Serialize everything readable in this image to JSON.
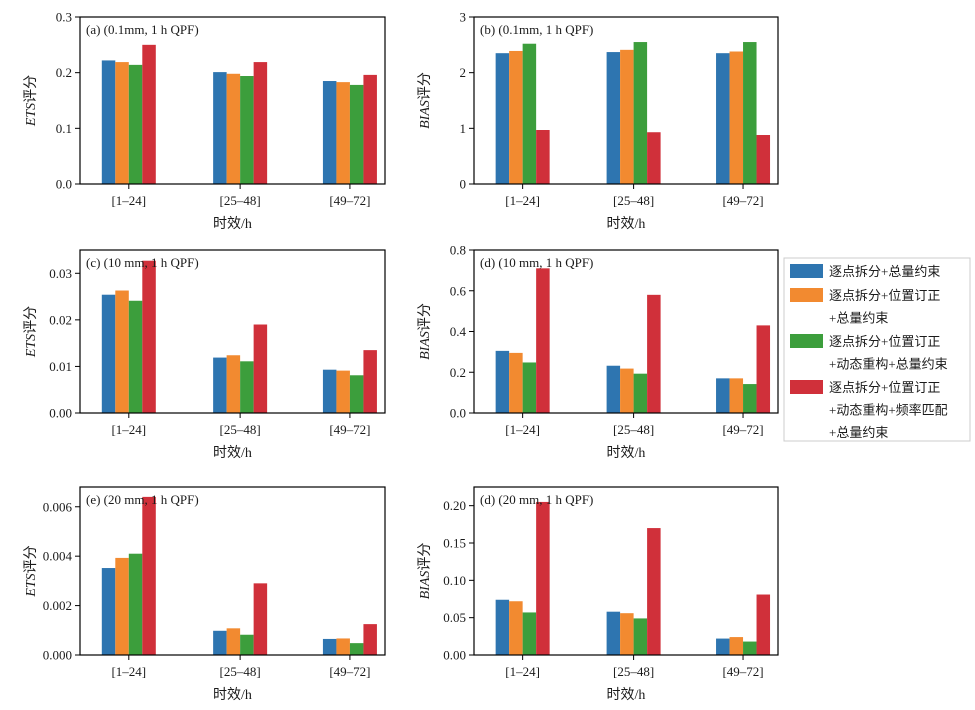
{
  "series_names": [
    "逐点拆分+总量约束",
    "逐点拆分+位置订正+总量约束",
    "逐点拆分+位置订正+动态重构+总量约束",
    "逐点拆分+位置订正+动态重构+频率匹配+总量约束"
  ],
  "legend": {
    "entries": [
      {
        "lines": [
          "逐点拆分+总量约束"
        ],
        "color": "#2e75b0"
      },
      {
        "lines": [
          "逐点拆分+位置订正",
          "+总量约束"
        ],
        "color": "#f28a30"
      },
      {
        "lines": [
          "逐点拆分+位置订正",
          "+动态重构+总量约束"
        ],
        "color": "#3c9e3c"
      },
      {
        "lines": [
          "逐点拆分+位置订正",
          "+动态重构+频率匹配",
          "+总量约束"
        ],
        "color": "#d0303a"
      }
    ]
  },
  "chart_data": [
    {
      "id": "a",
      "type": "bar",
      "title": "(a) (0.1mm, 1 h QPF)",
      "ylabel_italic": "ETS",
      "ylabel_suffix": "评分",
      "xlabel": "时效/h",
      "categories": [
        "[1–24]",
        "[25–48]",
        "[49–72]"
      ],
      "ylim": [
        0,
        0.3
      ],
      "yticks": [
        {
          "v": 0.0,
          "label": "0.0"
        },
        {
          "v": 0.1,
          "label": "0.1"
        },
        {
          "v": 0.2,
          "label": "0.2"
        },
        {
          "v": 0.3,
          "label": "0.3"
        }
      ],
      "series": [
        {
          "color": "#2e75b0",
          "values": [
            0.222,
            0.201,
            0.185
          ]
        },
        {
          "color": "#f28a30",
          "values": [
            0.219,
            0.198,
            0.183
          ]
        },
        {
          "color": "#3c9e3c",
          "values": [
            0.214,
            0.194,
            0.178
          ]
        },
        {
          "color": "#d0303a",
          "values": [
            0.25,
            0.219,
            0.196
          ]
        }
      ]
    },
    {
      "id": "b",
      "type": "bar",
      "title": "(b) (0.1mm, 1 h QPF)",
      "ylabel_italic": "BIAS",
      "ylabel_suffix": "评分",
      "xlabel": "时效/h",
      "categories": [
        "[1–24]",
        "[25–48]",
        "[49–72]"
      ],
      "ylim": [
        0,
        3
      ],
      "yticks": [
        {
          "v": 0,
          "label": "0"
        },
        {
          "v": 1,
          "label": "1"
        },
        {
          "v": 2,
          "label": "2"
        },
        {
          "v": 3,
          "label": "3"
        }
      ],
      "series": [
        {
          "color": "#2e75b0",
          "values": [
            2.35,
            2.37,
            2.35
          ]
        },
        {
          "color": "#f28a30",
          "values": [
            2.39,
            2.41,
            2.38
          ]
        },
        {
          "color": "#3c9e3c",
          "values": [
            2.52,
            2.55,
            2.55
          ]
        },
        {
          "color": "#d0303a",
          "values": [
            0.97,
            0.93,
            0.88
          ]
        }
      ]
    },
    {
      "id": "c",
      "type": "bar",
      "title": "(c) (10 mm, 1 h QPF)",
      "ylabel_italic": "ETS",
      "ylabel_suffix": "评分",
      "xlabel": "时效/h",
      "categories": [
        "[1–24]",
        "[25–48]",
        "[49–72]"
      ],
      "ylim": [
        0,
        0.035
      ],
      "yticks": [
        {
          "v": 0.0,
          "label": "0.00"
        },
        {
          "v": 0.01,
          "label": "0.01"
        },
        {
          "v": 0.02,
          "label": "0.02"
        },
        {
          "v": 0.03,
          "label": "0.03"
        }
      ],
      "series": [
        {
          "color": "#2e75b0",
          "values": [
            0.0254,
            0.0119,
            0.0093
          ]
        },
        {
          "color": "#f28a30",
          "values": [
            0.0263,
            0.0124,
            0.0091
          ]
        },
        {
          "color": "#3c9e3c",
          "values": [
            0.0241,
            0.0111,
            0.0081
          ]
        },
        {
          "color": "#d0303a",
          "values": [
            0.0327,
            0.019,
            0.0135
          ]
        }
      ]
    },
    {
      "id": "d1",
      "type": "bar",
      "title": "(d) (10 mm, 1 h QPF)",
      "ylabel_italic": "BIAS",
      "ylabel_suffix": "评分",
      "xlabel": "时效/h",
      "categories": [
        "[1–24]",
        "[25–48]",
        "[49–72]"
      ],
      "ylim": [
        0,
        0.8
      ],
      "yticks": [
        {
          "v": 0.0,
          "label": "0.0"
        },
        {
          "v": 0.2,
          "label": "0.2"
        },
        {
          "v": 0.4,
          "label": "0.4"
        },
        {
          "v": 0.6,
          "label": "0.6"
        },
        {
          "v": 0.8,
          "label": "0.8"
        }
      ],
      "series": [
        {
          "color": "#2e75b0",
          "values": [
            0.305,
            0.232,
            0.17
          ]
        },
        {
          "color": "#f28a30",
          "values": [
            0.295,
            0.218,
            0.17
          ]
        },
        {
          "color": "#3c9e3c",
          "values": [
            0.248,
            0.193,
            0.142
          ]
        },
        {
          "color": "#d0303a",
          "values": [
            0.71,
            0.58,
            0.43
          ]
        }
      ]
    },
    {
      "id": "e",
      "type": "bar",
      "title": "(e) (20 mm, 1 h QPF)",
      "ylabel_italic": "ETS",
      "ylabel_suffix": "评分",
      "xlabel": "时效/h",
      "categories": [
        "[1–24]",
        "[25–48]",
        "[49–72]"
      ],
      "ylim": [
        0,
        0.0068
      ],
      "yticks": [
        {
          "v": 0.0,
          "label": "0.000"
        },
        {
          "v": 0.002,
          "label": "0.002"
        },
        {
          "v": 0.004,
          "label": "0.004"
        },
        {
          "v": 0.006,
          "label": "0.006"
        }
      ],
      "series": [
        {
          "color": "#2e75b0",
          "values": [
            0.00352,
            0.00098,
            0.00065
          ]
        },
        {
          "color": "#f28a30",
          "values": [
            0.00393,
            0.00108,
            0.00067
          ]
        },
        {
          "color": "#3c9e3c",
          "values": [
            0.0041,
            0.00082,
            0.00048
          ]
        },
        {
          "color": "#d0303a",
          "values": [
            0.0064,
            0.0029,
            0.00125
          ]
        }
      ]
    },
    {
      "id": "d2",
      "type": "bar",
      "title": "(d) (20 mm, 1 h QPF)",
      "ylabel_italic": "BIAS",
      "ylabel_suffix": "评分",
      "xlabel": "时效/h",
      "categories": [
        "[1–24]",
        "[25–48]",
        "[49–72]"
      ],
      "ylim": [
        0,
        0.225
      ],
      "yticks": [
        {
          "v": 0.0,
          "label": "0.00"
        },
        {
          "v": 0.05,
          "label": "0.05"
        },
        {
          "v": 0.1,
          "label": "0.10"
        },
        {
          "v": 0.15,
          "label": "0.15"
        },
        {
          "v": 0.2,
          "label": "0.20"
        }
      ],
      "series": [
        {
          "color": "#2e75b0",
          "values": [
            0.074,
            0.058,
            0.022
          ]
        },
        {
          "color": "#f28a30",
          "values": [
            0.072,
            0.056,
            0.024
          ]
        },
        {
          "color": "#3c9e3c",
          "values": [
            0.057,
            0.049,
            0.018
          ]
        },
        {
          "color": "#d0303a",
          "values": [
            0.205,
            0.17,
            0.081
          ]
        }
      ]
    }
  ]
}
